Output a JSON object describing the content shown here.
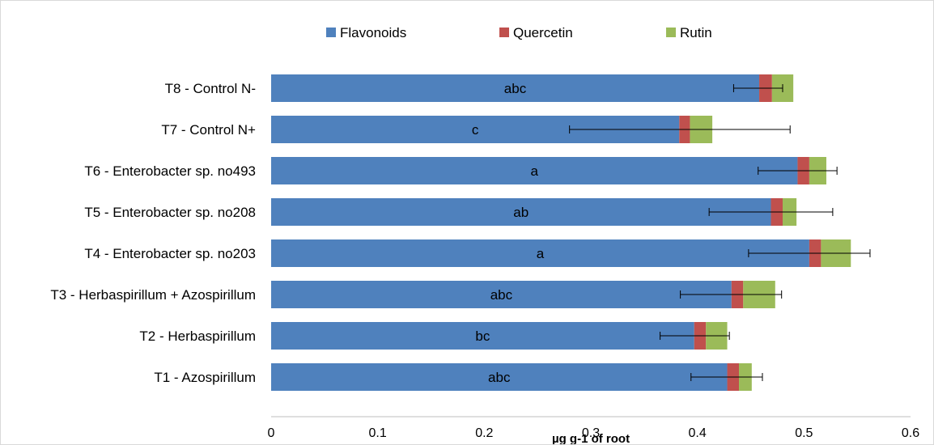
{
  "chart_data": {
    "type": "bar",
    "orientation": "horizontal",
    "stacked": true,
    "categories": [
      "T8 - Control N-",
      "T7 - Control N+",
      "T6 - Enterobacter sp. no493",
      "T5 - Enterobacter sp. no208",
      "T4 - Enterobacter sp. no203",
      "T3 - Herbaspirillum + Azospirillum",
      "T2 - Herbaspirillum",
      "T1 - Azospirillum"
    ],
    "series": [
      {
        "name": "Flavonoids",
        "color": "#4f81bd",
        "values": [
          0.458,
          0.383,
          0.494,
          0.469,
          0.505,
          0.432,
          0.397,
          0.428
        ]
      },
      {
        "name": "Quercetin",
        "color": "#c0504d",
        "values": [
          0.012,
          0.01,
          0.011,
          0.011,
          0.011,
          0.011,
          0.011,
          0.011
        ]
      },
      {
        "name": "Rutin",
        "color": "#9bbb59",
        "values": [
          0.02,
          0.021,
          0.016,
          0.013,
          0.028,
          0.03,
          0.02,
          0.012
        ]
      }
    ],
    "error_bars": [
      {
        "center": 0.457,
        "low": 0.434,
        "high": 0.48
      },
      {
        "center": 0.383,
        "low": 0.28,
        "high": 0.487
      },
      {
        "center": 0.494,
        "low": 0.457,
        "high": 0.531
      },
      {
        "center": 0.469,
        "low": 0.411,
        "high": 0.527
      },
      {
        "center": 0.505,
        "low": 0.448,
        "high": 0.562
      },
      {
        "center": 0.431,
        "low": 0.384,
        "high": 0.479
      },
      {
        "center": 0.397,
        "low": 0.365,
        "high": 0.43
      },
      {
        "center": 0.427,
        "low": 0.394,
        "high": 0.461
      }
    ],
    "bar_labels": [
      "abc",
      "c",
      "a",
      "ab",
      "a",
      "abc",
      "bc",
      "abc"
    ],
    "xlabel": "µg g-1 of root",
    "xlim": [
      0,
      0.6
    ],
    "xticks": [
      0,
      0.1,
      0.2,
      0.3,
      0.4,
      0.5,
      0.6
    ],
    "xtick_labels": [
      "0",
      "0.1",
      "0.2",
      "0.3",
      "0.4",
      "0.5",
      "0.6"
    ],
    "legend_position": "top",
    "grid": false
  }
}
